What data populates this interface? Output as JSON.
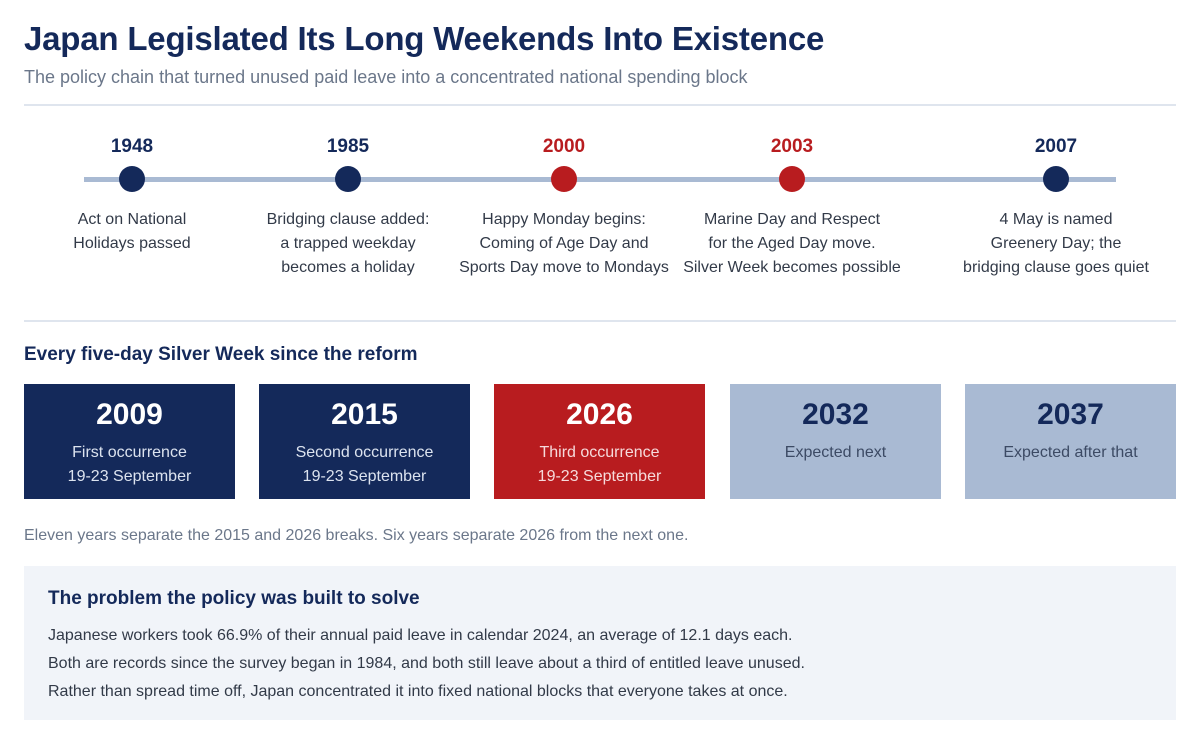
{
  "header": {
    "title": "Japan Legislated Its Long Weekends Into Existence",
    "subtitle": "The policy chain that turned unused paid leave into a concentrated national spending block"
  },
  "colors": {
    "navy": "#14295a",
    "red": "#b81c1f",
    "light_blue": "#a9bad3",
    "panel_bg": "#f1f4f9"
  },
  "timeline": [
    {
      "year": "1948",
      "accent": "navy",
      "lines": [
        "Act on National",
        "Holidays passed"
      ]
    },
    {
      "year": "1985",
      "accent": "navy",
      "lines": [
        "Bridging clause added:",
        "a trapped weekday",
        "becomes a holiday"
      ]
    },
    {
      "year": "2000",
      "accent": "red",
      "lines": [
        "Happy Monday begins:",
        "Coming of Age Day and",
        "Sports Day move to Mondays"
      ]
    },
    {
      "year": "2003",
      "accent": "red",
      "lines": [
        "Marine Day and Respect",
        "for the Aged Day move.",
        "Silver Week becomes possible"
      ]
    },
    {
      "year": "2007",
      "accent": "navy",
      "lines": [
        "4 May is named",
        "Greenery Day; the",
        "bridging clause goes quiet"
      ]
    }
  ],
  "silver_week": {
    "heading": "Every five-day Silver Week since the reform",
    "cards": [
      {
        "year": "2009",
        "style": "navy",
        "line1": "First occurrence",
        "line2": "19-23 September"
      },
      {
        "year": "2015",
        "style": "navy",
        "line1": "Second occurrence",
        "line2": "19-23 September"
      },
      {
        "year": "2026",
        "style": "red",
        "line1": "Third occurrence",
        "line2": "19-23 September"
      },
      {
        "year": "2032",
        "style": "light",
        "line1": "Expected next",
        "line2": ""
      },
      {
        "year": "2037",
        "style": "light",
        "line1": "Expected after that",
        "line2": ""
      }
    ],
    "note": "Eleven years separate the 2015 and 2026 breaks. Six years separate 2026 from the next one."
  },
  "problem": {
    "title": "The problem the policy was built to solve",
    "lines": [
      "Japanese workers took 66.9% of their annual paid leave in calendar 2024, an average of 12.1 days each.",
      "Both are records since the survey began in 1984, and both still leave about a third of entitled leave unused.",
      "Rather than spread time off, Japan concentrated it into fixed national blocks that everyone takes at once."
    ]
  }
}
